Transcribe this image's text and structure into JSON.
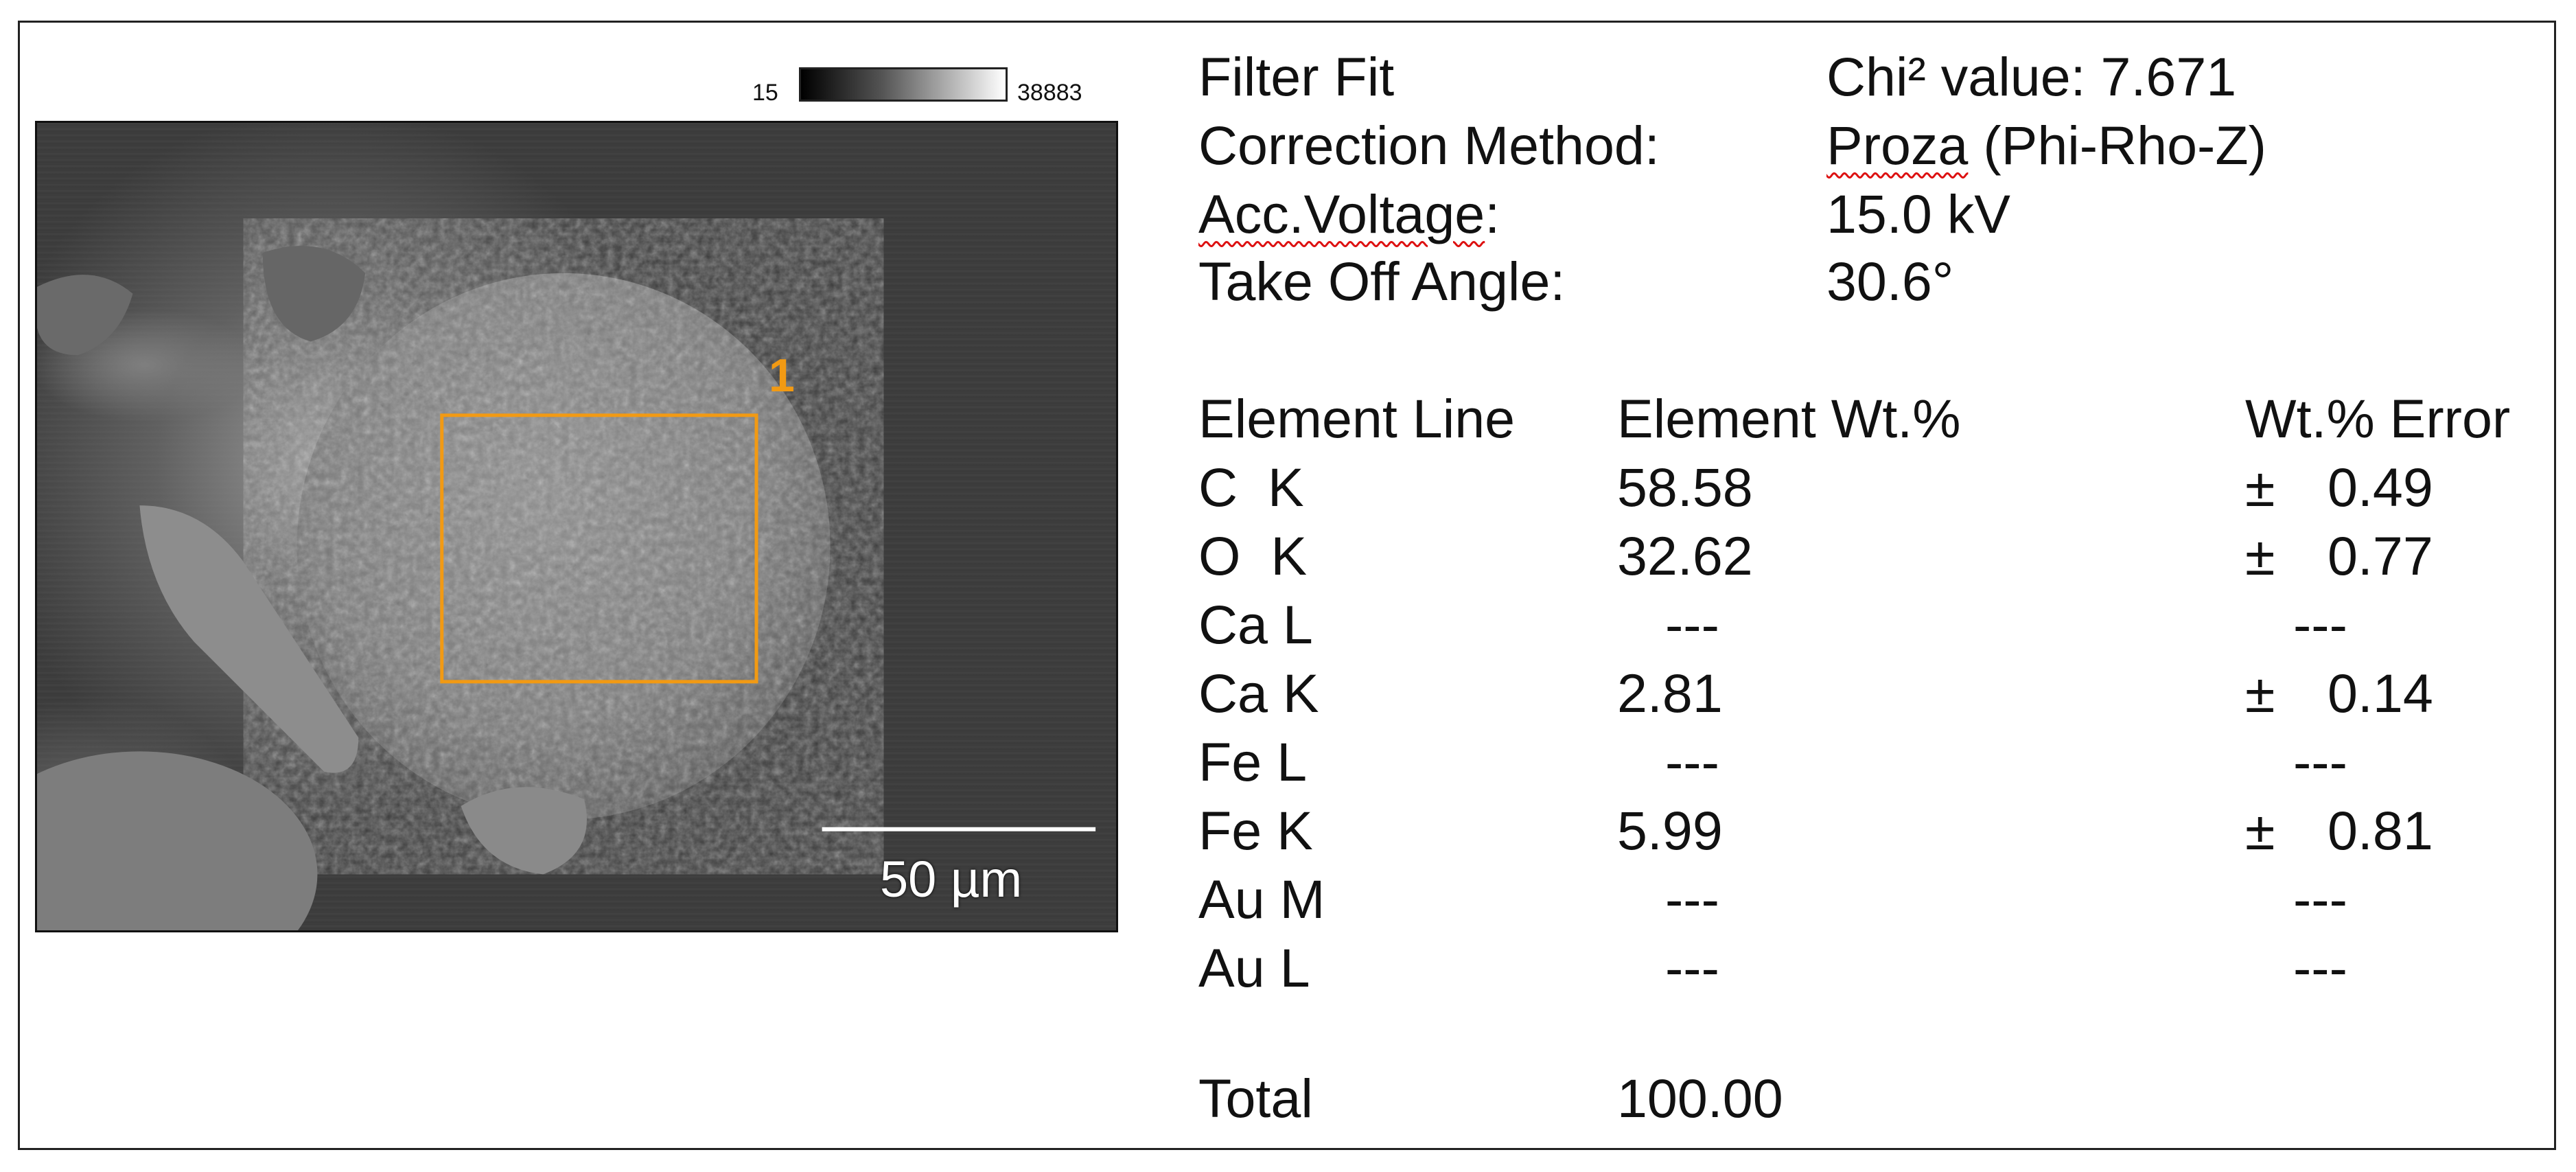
{
  "micrograph": {
    "gradient_min": "15",
    "gradient_max": "38883",
    "region_label": "1",
    "scale_bar": "50 µm",
    "region_color": "#f29a13"
  },
  "header": [
    {
      "label": "Filter Fit",
      "value": "Chi² value: 7.671"
    },
    {
      "label": "Correction Method:",
      "value_underlined": "Proza",
      "value_rest": " (Phi-Rho-Z)"
    },
    {
      "label_underlined": "Acc.Voltage",
      "label_rest": ":",
      "value": "15.0 kV"
    },
    {
      "label": "Take Off Angle:",
      "value": "30.6°"
    }
  ],
  "table": {
    "columns": [
      "Element Line",
      "Element Wt.%",
      "Wt.% Error"
    ],
    "rows": [
      {
        "line": "C  K",
        "wt": "58.58",
        "pm": "±",
        "err": "0.49"
      },
      {
        "line": "O  K",
        "wt": "32.62",
        "pm": "±",
        "err": "0.77"
      },
      {
        "line": "Ca L",
        "wt": "---",
        "pm": "",
        "err": "---"
      },
      {
        "line": "Ca K",
        "wt": "2.81",
        "pm": "±",
        "err": "0.14"
      },
      {
        "line": "Fe L",
        "wt": "---",
        "pm": "",
        "err": "---"
      },
      {
        "line": "Fe K",
        "wt": "5.99",
        "pm": "±",
        "err": "0.81"
      },
      {
        "line": "Au M",
        "wt": "---",
        "pm": "",
        "err": "---"
      },
      {
        "line": "Au L",
        "wt": "---",
        "pm": "",
        "err": "---"
      }
    ],
    "total_label": "Total",
    "total_value": "100.00"
  }
}
